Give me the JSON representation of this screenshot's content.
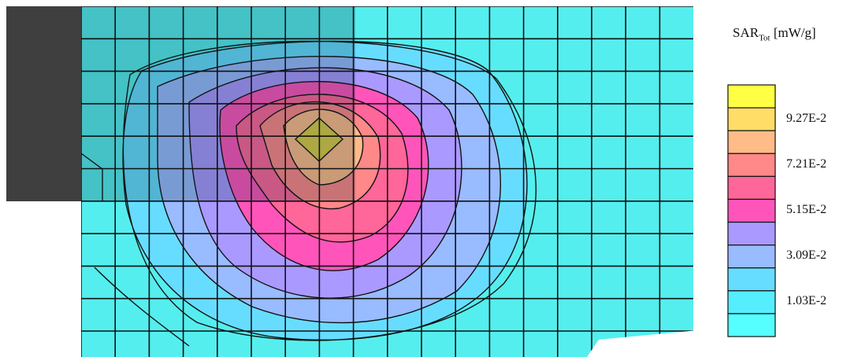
{
  "chart_data": {
    "type": "heatmap",
    "subtype": "contour",
    "legend": {
      "title_main": "SAR",
      "title_sub": "Tot",
      "title_unit": "[mW/g]",
      "colors": [
        "#ffff44",
        "#ffdd66",
        "#ffbb88",
        "#ff8888",
        "#ff6699",
        "#ff55bb",
        "#aa99ff",
        "#99bbff",
        "#66ddff",
        "#55eeff",
        "#55ffff"
      ],
      "tick_labels": [
        "9.27E-2",
        "7.21E-2",
        "5.15E-2",
        "3.09E-2",
        "1.03E-2"
      ]
    },
    "peak_cell": "center"
  }
}
